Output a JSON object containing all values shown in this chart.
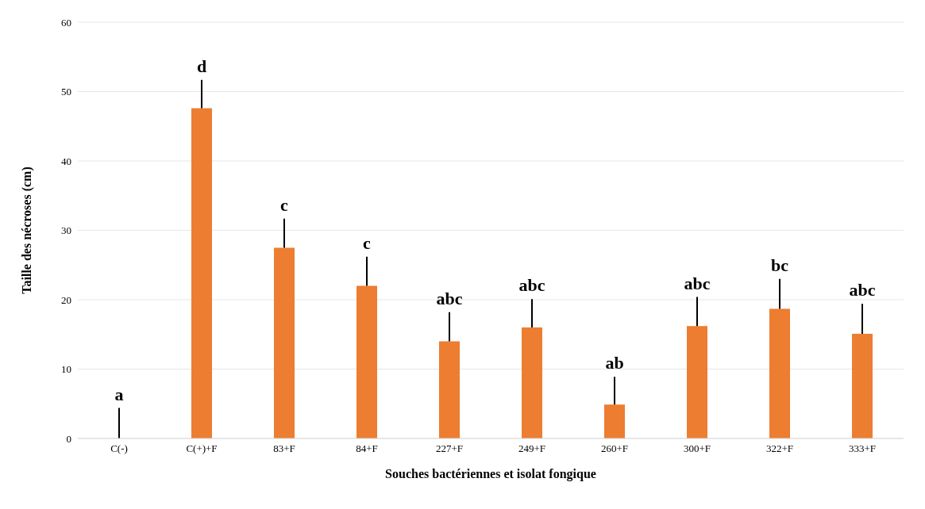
{
  "chart_data": {
    "type": "bar",
    "xlabel": "Souches bactériennes et isolat fongique",
    "ylabel": "Taille des nécroses (cm)",
    "categories": [
      "C(-)",
      "C(+)+F",
      "83+F",
      "84+F",
      "227+F",
      "249+F",
      "260+F",
      "300+F",
      "322+F",
      "333+F"
    ],
    "values": [
      0,
      47.6,
      27.5,
      22,
      14,
      16,
      4.9,
      16.2,
      18.7,
      15.1
    ],
    "errors": [
      [
        0,
        4.4
      ],
      [
        47.6,
        51.7
      ],
      [
        27.5,
        31.7
      ],
      [
        22,
        26.2
      ],
      [
        14,
        18.2
      ],
      [
        16,
        20.1
      ],
      [
        4.9,
        8.9
      ],
      [
        16.2,
        20.4
      ],
      [
        18.7,
        23
      ],
      [
        15.1,
        19.4
      ]
    ],
    "color": "#ed7d31",
    "ylim": [
      0,
      60
    ],
    "yticks": [
      0,
      10,
      20,
      30,
      40,
      50,
      60
    ],
    "grid": "y",
    "annotations": [
      {
        "text": "a",
        "x": "C(-)",
        "y": 0
      },
      {
        "text": "d",
        "x": "C(+)+F",
        "y": 47.6
      },
      {
        "text": "c",
        "x": "83+F",
        "y": 27.5
      },
      {
        "text": "c",
        "x": "84+F",
        "y": 22
      },
      {
        "text": "abc",
        "x": "227+F",
        "y": 14
      },
      {
        "text": "abc",
        "x": "249+F",
        "y": 16
      },
      {
        "text": "ab",
        "x": "260+F",
        "y": 4.9
      },
      {
        "text": "abc",
        "x": "300+F",
        "y": 16.2
      },
      {
        "text": "bc",
        "x": "322+F",
        "y": 18.7
      },
      {
        "text": "abc",
        "x": "333+F",
        "y": 15.1
      }
    ]
  }
}
